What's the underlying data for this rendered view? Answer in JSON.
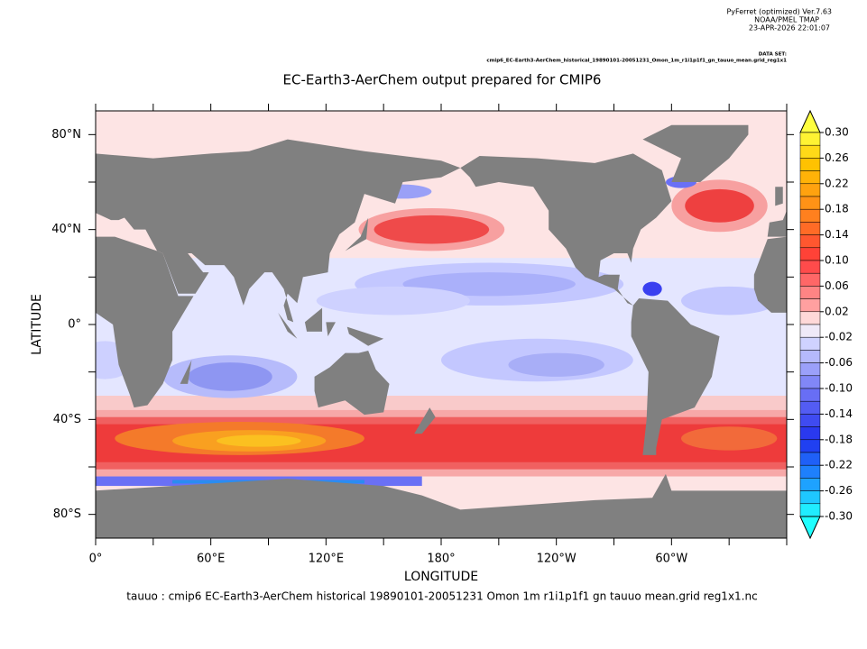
{
  "header": {
    "software": "PyFerret (optimized) Ver.7.63",
    "organization": "NOAA/PMEL TMAP",
    "timestamp": "23-APR-2026 22:01:07",
    "dataset_label": "DATA SET:",
    "dataset": "cmip6_EC-Earth3-AerChem_historical_19890101-20051231_Omon_1m_r1i1p1f1_gn_tauuo_mean.grid_reg1x1"
  },
  "title": "EC-Earth3-AerChem output prepared for CMIP6",
  "y_axis": {
    "label": "LATITUDE",
    "ticks": [
      "80°N",
      "40°N",
      "0°",
      "40°S",
      "80°S"
    ]
  },
  "x_axis": {
    "label": "LONGITUDE",
    "ticks": [
      "0°",
      "60°E",
      "120°E",
      "180°",
      "120°W",
      "60°W"
    ]
  },
  "colorbar": {
    "labels": [
      "0.30",
      "0.26",
      "0.22",
      "0.18",
      "0.14",
      "0.10",
      "0.06",
      "0.02",
      "-0.02",
      "-0.06",
      "-0.10",
      "-0.14",
      "-0.18",
      "-0.22",
      "-0.26",
      "-0.30"
    ]
  },
  "footer": "tauuo : cmip6 EC-Earth3-AerChem historical 19890101-20051231 Omon 1m r1i1p1f1 gn tauuo mean.grid reg1x1.nc"
}
